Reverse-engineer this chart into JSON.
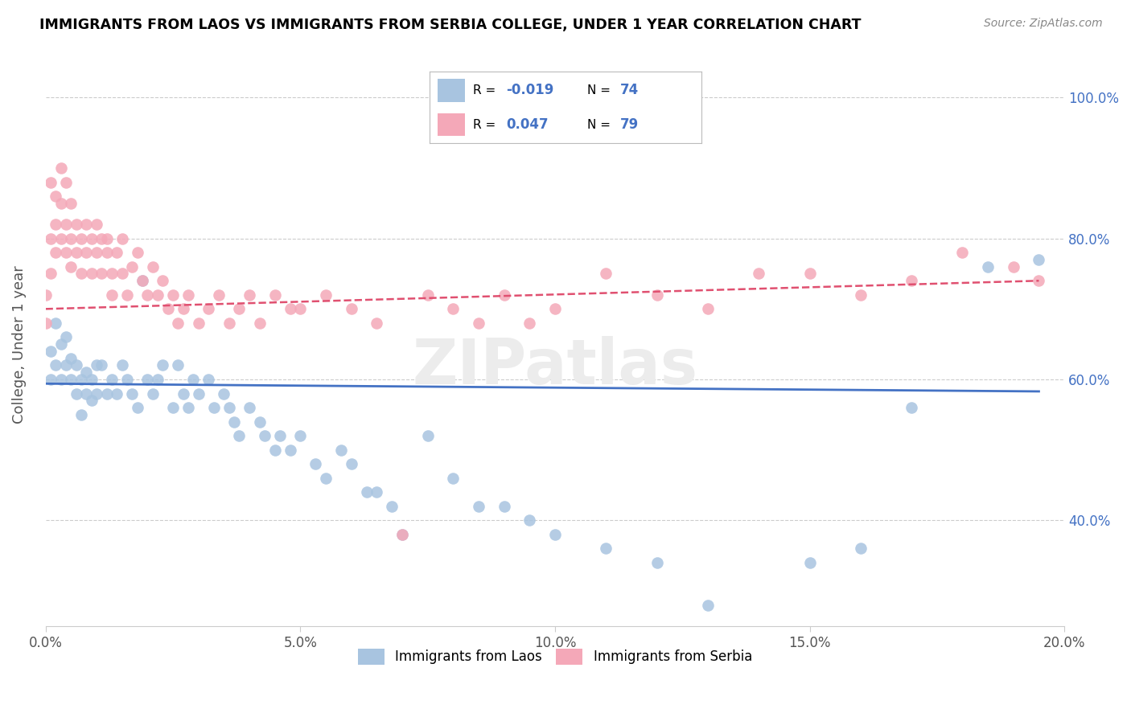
{
  "title": "IMMIGRANTS FROM LAOS VS IMMIGRANTS FROM SERBIA COLLEGE, UNDER 1 YEAR CORRELATION CHART",
  "source": "Source: ZipAtlas.com",
  "ylabel": "College, Under 1 year",
  "xlim": [
    0.0,
    0.2
  ],
  "ylim": [
    0.25,
    1.05
  ],
  "xtick_labels": [
    "0.0%",
    "5.0%",
    "10.0%",
    "15.0%",
    "20.0%"
  ],
  "xtick_vals": [
    0.0,
    0.05,
    0.1,
    0.15,
    0.2
  ],
  "ytick_labels": [
    "40.0%",
    "60.0%",
    "80.0%",
    "100.0%"
  ],
  "ytick_vals": [
    0.4,
    0.6,
    0.8,
    1.0
  ],
  "laos_R": -0.019,
  "laos_N": 74,
  "serbia_R": 0.047,
  "serbia_N": 79,
  "laos_color": "#a8c4e0",
  "serbia_color": "#f4a8b8",
  "laos_line_color": "#4472c4",
  "serbia_line_color": "#e05070",
  "laos_scatter_x": [
    0.001,
    0.001,
    0.002,
    0.002,
    0.003,
    0.003,
    0.004,
    0.004,
    0.005,
    0.005,
    0.006,
    0.006,
    0.007,
    0.007,
    0.008,
    0.008,
    0.009,
    0.009,
    0.01,
    0.01,
    0.011,
    0.012,
    0.013,
    0.014,
    0.015,
    0.016,
    0.017,
    0.018,
    0.019,
    0.02,
    0.021,
    0.022,
    0.023,
    0.025,
    0.026,
    0.027,
    0.028,
    0.029,
    0.03,
    0.032,
    0.033,
    0.035,
    0.036,
    0.037,
    0.038,
    0.04,
    0.042,
    0.043,
    0.045,
    0.046,
    0.048,
    0.05,
    0.053,
    0.055,
    0.058,
    0.06,
    0.063,
    0.065,
    0.068,
    0.07,
    0.075,
    0.08,
    0.085,
    0.09,
    0.095,
    0.1,
    0.11,
    0.12,
    0.13,
    0.15,
    0.16,
    0.17,
    0.185,
    0.195
  ],
  "laos_scatter_y": [
    0.6,
    0.64,
    0.62,
    0.68,
    0.6,
    0.65,
    0.62,
    0.66,
    0.6,
    0.63,
    0.58,
    0.62,
    0.6,
    0.55,
    0.58,
    0.61,
    0.6,
    0.57,
    0.62,
    0.58,
    0.62,
    0.58,
    0.6,
    0.58,
    0.62,
    0.6,
    0.58,
    0.56,
    0.74,
    0.6,
    0.58,
    0.6,
    0.62,
    0.56,
    0.62,
    0.58,
    0.56,
    0.6,
    0.58,
    0.6,
    0.56,
    0.58,
    0.56,
    0.54,
    0.52,
    0.56,
    0.54,
    0.52,
    0.5,
    0.52,
    0.5,
    0.52,
    0.48,
    0.46,
    0.5,
    0.48,
    0.44,
    0.44,
    0.42,
    0.38,
    0.52,
    0.46,
    0.42,
    0.42,
    0.4,
    0.38,
    0.36,
    0.34,
    0.28,
    0.34,
    0.36,
    0.56,
    0.76,
    0.77
  ],
  "serbia_scatter_x": [
    0.0,
    0.0,
    0.001,
    0.001,
    0.001,
    0.002,
    0.002,
    0.002,
    0.003,
    0.003,
    0.003,
    0.004,
    0.004,
    0.004,
    0.005,
    0.005,
    0.005,
    0.006,
    0.006,
    0.007,
    0.007,
    0.008,
    0.008,
    0.009,
    0.009,
    0.01,
    0.01,
    0.011,
    0.011,
    0.012,
    0.012,
    0.013,
    0.013,
    0.014,
    0.015,
    0.015,
    0.016,
    0.017,
    0.018,
    0.019,
    0.02,
    0.021,
    0.022,
    0.023,
    0.024,
    0.025,
    0.026,
    0.027,
    0.028,
    0.03,
    0.032,
    0.034,
    0.036,
    0.038,
    0.04,
    0.042,
    0.045,
    0.048,
    0.05,
    0.055,
    0.06,
    0.065,
    0.07,
    0.075,
    0.08,
    0.085,
    0.09,
    0.095,
    0.1,
    0.11,
    0.12,
    0.13,
    0.14,
    0.15,
    0.16,
    0.17,
    0.18,
    0.19,
    0.195
  ],
  "serbia_scatter_y": [
    0.72,
    0.68,
    0.75,
    0.8,
    0.88,
    0.78,
    0.82,
    0.86,
    0.8,
    0.85,
    0.9,
    0.78,
    0.82,
    0.88,
    0.76,
    0.8,
    0.85,
    0.78,
    0.82,
    0.8,
    0.75,
    0.82,
    0.78,
    0.8,
    0.75,
    0.82,
    0.78,
    0.8,
    0.75,
    0.78,
    0.8,
    0.75,
    0.72,
    0.78,
    0.75,
    0.8,
    0.72,
    0.76,
    0.78,
    0.74,
    0.72,
    0.76,
    0.72,
    0.74,
    0.7,
    0.72,
    0.68,
    0.7,
    0.72,
    0.68,
    0.7,
    0.72,
    0.68,
    0.7,
    0.72,
    0.68,
    0.72,
    0.7,
    0.7,
    0.72,
    0.7,
    0.68,
    0.38,
    0.72,
    0.7,
    0.68,
    0.72,
    0.68,
    0.7,
    0.75,
    0.72,
    0.7,
    0.75,
    0.75,
    0.72,
    0.74,
    0.78,
    0.76,
    0.74
  ],
  "laos_trendline_x": [
    0.0,
    0.195
  ],
  "laos_trendline_y": [
    0.594,
    0.583
  ],
  "serbia_trendline_x": [
    0.0,
    0.195
  ],
  "serbia_trendline_y": [
    0.7,
    0.74
  ]
}
